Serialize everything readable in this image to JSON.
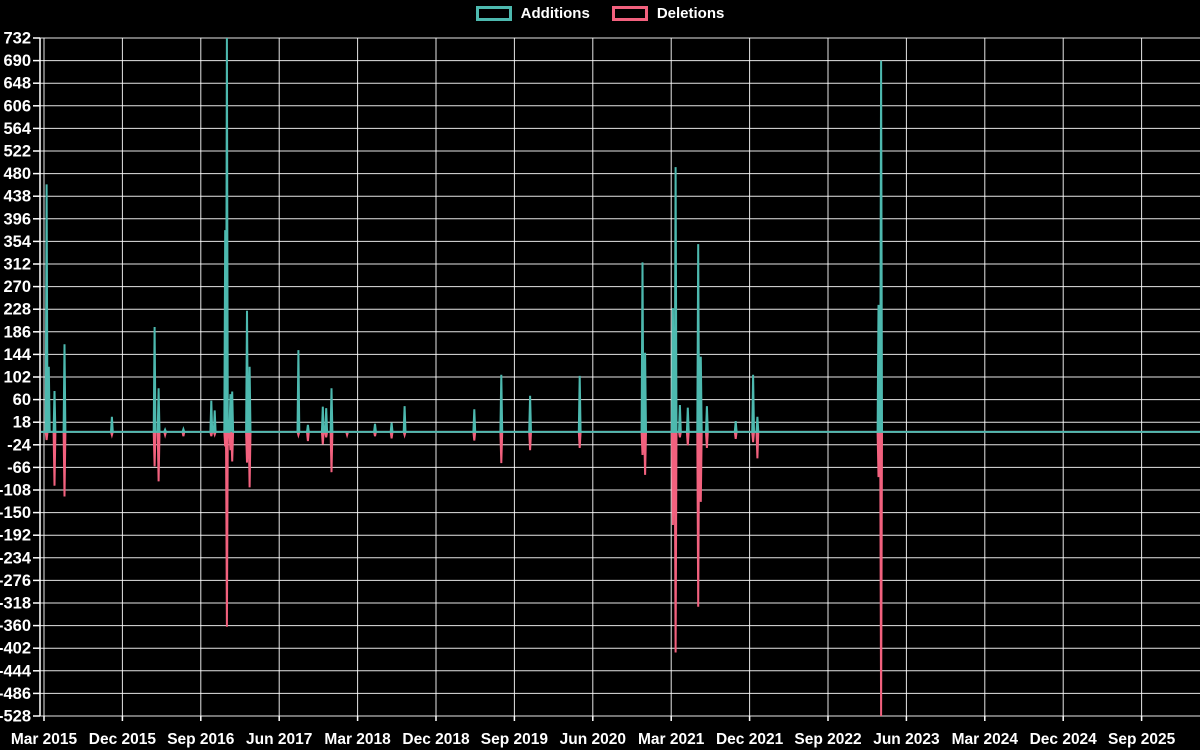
{
  "legend": {
    "additions_label": "Additions",
    "deletions_label": "Deletions"
  },
  "colors": {
    "background": "#000000",
    "additions": "#4db9af",
    "deletions": "#f2617e",
    "grid": "#ffffff",
    "text": "#ffffff"
  },
  "chart_data": {
    "type": "line",
    "title": "",
    "xlabel": "",
    "ylabel": "",
    "grid": true,
    "legend_position": "top-center",
    "x_axis": {
      "tick_labels": [
        "Mar 2015",
        "Dec 2015",
        "Sep 2016",
        "Jun 2017",
        "Mar 2018",
        "Dec 2018",
        "Sep 2019",
        "Jun 2020",
        "Mar 2021",
        "Dec 2021",
        "Sep 2022",
        "Jun 2023",
        "Mar 2024",
        "Dec 2024",
        "Sep 2025"
      ],
      "months_between_ticks": 9
    },
    "y_axis": {
      "min": -528,
      "max": 732,
      "step": 42,
      "tick_labels": [
        732,
        690,
        648,
        606,
        564,
        522,
        480,
        438,
        396,
        354,
        312,
        270,
        228,
        186,
        144,
        102,
        60,
        18,
        -24,
        -66,
        -108,
        -150,
        -192,
        -234,
        -276,
        -318,
        -360,
        -402,
        -444,
        -486,
        -528
      ]
    },
    "series": [
      {
        "name": "Additions",
        "color": "#4db9af",
        "value_key": "additions"
      },
      {
        "name": "Deletions",
        "color": "#f2617e",
        "value_key": "deletions"
      }
    ],
    "points": [
      {
        "date": "2015-03",
        "t": 0.3,
        "additions": 460,
        "deletions": -15
      },
      {
        "date": "2015-03",
        "t": 0.55,
        "additions": 121,
        "deletions": 0
      },
      {
        "date": "2015-04",
        "t": 1.2,
        "additions": 76,
        "deletions": -100
      },
      {
        "date": "2015-05",
        "t": 2.35,
        "additions": 163,
        "deletions": -120
      },
      {
        "date": "2015-10",
        "t": 7.8,
        "additions": 28,
        "deletions": -6
      },
      {
        "date": "2016-03",
        "t": 12.7,
        "additions": 195,
        "deletions": -64
      },
      {
        "date": "2016-04",
        "t": 13.15,
        "additions": 81,
        "deletions": -92
      },
      {
        "date": "2016-05",
        "t": 13.9,
        "additions": 4,
        "deletions": -6
      },
      {
        "date": "2016-07",
        "t": 16.0,
        "additions": 5,
        "deletions": -8
      },
      {
        "date": "2016-10",
        "t": 19.2,
        "additions": 58,
        "deletions": -8
      },
      {
        "date": "2016-10",
        "t": 19.6,
        "additions": 40,
        "deletions": -5
      },
      {
        "date": "2016-11",
        "t": 20.8,
        "additions": 375,
        "deletions": -27
      },
      {
        "date": "2016-12",
        "t": 21.0,
        "additions": 732,
        "deletions": -362
      },
      {
        "date": "2016-12",
        "t": 21.4,
        "additions": 70,
        "deletions": -34
      },
      {
        "date": "2016-12",
        "t": 21.6,
        "additions": 75,
        "deletions": -55
      },
      {
        "date": "2017-02",
        "t": 23.3,
        "additions": 225,
        "deletions": -57
      },
      {
        "date": "2017-02",
        "t": 23.6,
        "additions": 121,
        "deletions": -103
      },
      {
        "date": "2017-08",
        "t": 29.2,
        "additions": 152,
        "deletions": -6
      },
      {
        "date": "2017-09",
        "t": 30.3,
        "additions": 13,
        "deletions": -17
      },
      {
        "date": "2017-11",
        "t": 32.0,
        "additions": 47,
        "deletions": -23
      },
      {
        "date": "2017-11",
        "t": 32.4,
        "additions": 44,
        "deletions": -10
      },
      {
        "date": "2017-12",
        "t": 33.0,
        "additions": 81,
        "deletions": -75
      },
      {
        "date": "2018-01",
        "t": 34.8,
        "additions": 0,
        "deletions": -6
      },
      {
        "date": "2018-05",
        "t": 38.0,
        "additions": 15,
        "deletions": -8
      },
      {
        "date": "2018-06",
        "t": 39.9,
        "additions": 17,
        "deletions": -12
      },
      {
        "date": "2018-08",
        "t": 41.4,
        "additions": 48,
        "deletions": -6
      },
      {
        "date": "2019-04",
        "t": 49.4,
        "additions": 42,
        "deletions": -16
      },
      {
        "date": "2019-07",
        "t": 52.5,
        "additions": 106,
        "deletions": -58
      },
      {
        "date": "2019-10",
        "t": 55.8,
        "additions": 67,
        "deletions": -34
      },
      {
        "date": "2020-04",
        "t": 61.5,
        "additions": 104,
        "deletions": -30
      },
      {
        "date": "2020-11",
        "t": 68.7,
        "additions": 315,
        "deletions": -43
      },
      {
        "date": "2020-12",
        "t": 69.0,
        "additions": 147,
        "deletions": -80
      },
      {
        "date": "2021-03",
        "t": 72.2,
        "additions": 230,
        "deletions": -173
      },
      {
        "date": "2021-03",
        "t": 72.5,
        "additions": 492,
        "deletions": -410
      },
      {
        "date": "2021-04",
        "t": 73.0,
        "additions": 50,
        "deletions": -10
      },
      {
        "date": "2021-04",
        "t": 73.9,
        "additions": 45,
        "deletions": -25
      },
      {
        "date": "2021-06",
        "t": 75.1,
        "additions": 349,
        "deletions": -325
      },
      {
        "date": "2021-06",
        "t": 75.4,
        "additions": 140,
        "deletions": -130
      },
      {
        "date": "2021-07",
        "t": 76.1,
        "additions": 48,
        "deletions": -30
      },
      {
        "date": "2021-10",
        "t": 79.4,
        "additions": 20,
        "deletions": -13
      },
      {
        "date": "2021-12",
        "t": 81.4,
        "additions": 106,
        "deletions": -19
      },
      {
        "date": "2021-12",
        "t": 81.9,
        "additions": 28,
        "deletions": -49
      },
      {
        "date": "2023-02",
        "t": 95.8,
        "additions": 236,
        "deletions": -84
      },
      {
        "date": "2023-03",
        "t": 96.1,
        "additions": 690,
        "deletions": -528
      }
    ]
  }
}
